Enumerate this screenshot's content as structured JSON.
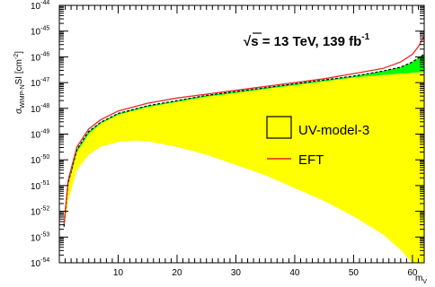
{
  "chart_data": {
    "type": "area",
    "title": "",
    "annotation": {
      "sqrt": "√",
      "text": "s = 13 TeV, 139 fb",
      "exponent": "-1"
    },
    "xlabel": "m",
    "xlabel_sub": "V",
    "ylabel": {
      "main": "σ",
      "sub": "WIMP-N",
      "mid": "SI [cm",
      "sup": "-2",
      "end": "]"
    },
    "x_range": [
      0,
      62
    ],
    "y_scale": "log",
    "y_range_exp": [
      -54,
      -44
    ],
    "x_ticks": [
      {
        "value": 10,
        "label": "10"
      },
      {
        "value": 20,
        "label": "20"
      },
      {
        "value": 30,
        "label": "30"
      },
      {
        "value": 40,
        "label": "40"
      },
      {
        "value": 50,
        "label": "50"
      },
      {
        "value": 60,
        "label": "60"
      }
    ],
    "y_ticks": [
      {
        "exp": -54,
        "base": "10",
        "sup": "-54"
      },
      {
        "exp": -53,
        "base": "10",
        "sup": "-53"
      },
      {
        "exp": -52,
        "base": "10",
        "sup": "-52"
      },
      {
        "exp": -51,
        "base": "10",
        "sup": "-51"
      },
      {
        "exp": -50,
        "base": "10",
        "sup": "-50"
      },
      {
        "exp": -49,
        "base": "10",
        "sup": "-49"
      },
      {
        "exp": -48,
        "base": "10",
        "sup": "-48"
      },
      {
        "exp": -47,
        "base": "10",
        "sup": "-47"
      },
      {
        "exp": -46,
        "base": "10",
        "sup": "-46"
      },
      {
        "exp": -45,
        "base": "10",
        "sup": "-45"
      },
      {
        "exp": -44,
        "base": "10",
        "sup": "-44"
      }
    ],
    "legend": [
      {
        "label": "UV-model-3",
        "style": "box"
      },
      {
        "label": "EFT",
        "style": "line",
        "color": "#e8262b"
      }
    ],
    "legend_placement": "center-right",
    "colors": {
      "yellow": "#ffff00",
      "green": "#00ff00",
      "eft": "#e8262b",
      "dashed": "#000000"
    },
    "series": [
      {
        "name": "UV-model-3",
        "role": "yellow_band",
        "upper": [
          [
            0.8,
            -52.7
          ],
          [
            1.5,
            -51.0
          ],
          [
            3,
            -49.7
          ],
          [
            5,
            -49.0
          ],
          [
            7,
            -48.6
          ],
          [
            10,
            -48.25
          ],
          [
            15,
            -47.95
          ],
          [
            20,
            -47.75
          ],
          [
            25,
            -47.55
          ],
          [
            30,
            -47.4
          ],
          [
            35,
            -47.25
          ],
          [
            40,
            -47.1
          ],
          [
            45,
            -46.95
          ],
          [
            50,
            -46.8
          ],
          [
            55,
            -46.7
          ],
          [
            58,
            -46.65
          ],
          [
            61,
            -46.6
          ],
          [
            62,
            -46.6
          ]
        ],
        "lower": [
          [
            0.8,
            -52.7
          ],
          [
            1.5,
            -51.6
          ],
          [
            3,
            -50.4
          ],
          [
            5,
            -49.8
          ],
          [
            7,
            -49.5
          ],
          [
            10,
            -49.3
          ],
          [
            13,
            -49.25
          ],
          [
            15,
            -49.28
          ],
          [
            20,
            -49.5
          ],
          [
            25,
            -49.8
          ],
          [
            30,
            -50.2
          ],
          [
            35,
            -50.6
          ],
          [
            40,
            -51.1
          ],
          [
            45,
            -51.6
          ],
          [
            50,
            -52.2
          ],
          [
            55,
            -52.9
          ],
          [
            58,
            -53.5
          ],
          [
            60,
            -54.0
          ],
          [
            62,
            -54.0
          ]
        ]
      },
      {
        "role": "green_band",
        "upper": [
          [
            0.8,
            -52.6
          ],
          [
            1.5,
            -50.9
          ],
          [
            3,
            -49.6
          ],
          [
            5,
            -48.9
          ],
          [
            7,
            -48.55
          ],
          [
            10,
            -48.2
          ],
          [
            15,
            -47.9
          ],
          [
            20,
            -47.7
          ],
          [
            25,
            -47.5
          ],
          [
            30,
            -47.35
          ],
          [
            35,
            -47.2
          ],
          [
            40,
            -47.05
          ],
          [
            45,
            -46.9
          ],
          [
            50,
            -46.75
          ],
          [
            55,
            -46.55
          ],
          [
            58,
            -46.4
          ],
          [
            60,
            -46.2
          ],
          [
            62,
            -45.9
          ]
        ],
        "lower": [
          [
            0.8,
            -52.7
          ],
          [
            1.5,
            -51.0
          ],
          [
            3,
            -49.7
          ],
          [
            5,
            -49.0
          ],
          [
            7,
            -48.6
          ],
          [
            10,
            -48.25
          ],
          [
            15,
            -47.95
          ],
          [
            20,
            -47.75
          ],
          [
            25,
            -47.55
          ],
          [
            30,
            -47.4
          ],
          [
            35,
            -47.25
          ],
          [
            40,
            -47.1
          ],
          [
            45,
            -46.95
          ],
          [
            50,
            -46.8
          ],
          [
            55,
            -46.7
          ],
          [
            58,
            -46.65
          ],
          [
            61,
            -46.6
          ],
          [
            62,
            -46.6
          ]
        ]
      },
      {
        "role": "dashed_line",
        "points": [
          [
            0.8,
            -52.6
          ],
          [
            1.5,
            -50.9
          ],
          [
            3,
            -49.6
          ],
          [
            5,
            -48.9
          ],
          [
            7,
            -48.55
          ],
          [
            10,
            -48.2
          ],
          [
            15,
            -47.9
          ],
          [
            20,
            -47.7
          ],
          [
            25,
            -47.5
          ],
          [
            30,
            -47.35
          ],
          [
            35,
            -47.2
          ],
          [
            40,
            -47.05
          ],
          [
            45,
            -46.9
          ],
          [
            50,
            -46.75
          ],
          [
            55,
            -46.55
          ],
          [
            58,
            -46.4
          ],
          [
            60,
            -46.2
          ],
          [
            62,
            -45.9
          ]
        ]
      },
      {
        "name": "EFT",
        "role": "eft_line",
        "points": [
          [
            0.8,
            -52.5
          ],
          [
            1.5,
            -50.8
          ],
          [
            3,
            -49.5
          ],
          [
            5,
            -48.8
          ],
          [
            7,
            -48.45
          ],
          [
            10,
            -48.1
          ],
          [
            15,
            -47.8
          ],
          [
            20,
            -47.6
          ],
          [
            25,
            -47.45
          ],
          [
            30,
            -47.3
          ],
          [
            35,
            -47.15
          ],
          [
            40,
            -47.0
          ],
          [
            45,
            -46.85
          ],
          [
            50,
            -46.65
          ],
          [
            55,
            -46.45
          ],
          [
            58,
            -46.2
          ],
          [
            60,
            -45.9
          ],
          [
            61,
            -45.6
          ],
          [
            62,
            -45.2
          ]
        ]
      }
    ]
  }
}
